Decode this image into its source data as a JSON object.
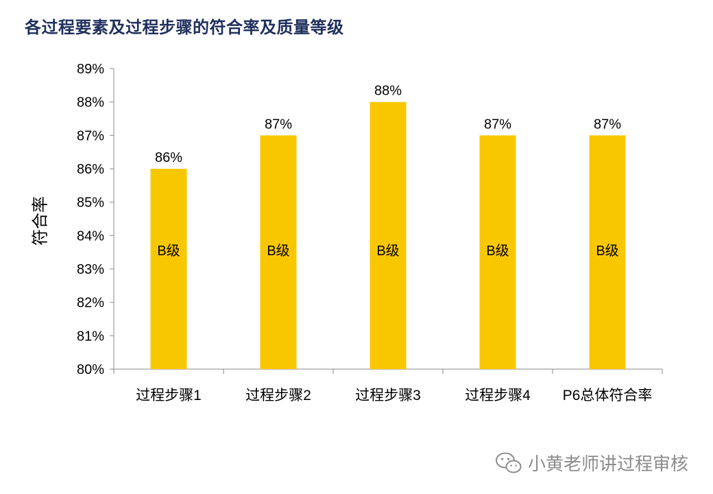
{
  "title": "各过程要素及过程步骤的符合率及质量等级",
  "watermark_text": "小黄老师讲过程审核",
  "colors": {
    "bar": "#F9C700",
    "axis": "#8a8a8a",
    "text": "#000000",
    "title": "#1f2f5c"
  },
  "chart_data": {
    "type": "bar",
    "title": "各过程要素及过程步骤的符合率及质量等级",
    "xlabel": "",
    "ylabel": "符合率",
    "categories": [
      "过程步骤1",
      "过程步骤2",
      "过程步骤3",
      "过程步骤4",
      "P6总体符合率"
    ],
    "values": [
      0.86,
      0.87,
      0.88,
      0.87,
      0.87
    ],
    "value_labels": [
      "86%",
      "87%",
      "88%",
      "87%",
      "87%"
    ],
    "grades": [
      "B级",
      "B级",
      "B级",
      "B级",
      "B级"
    ],
    "ylim": [
      0.8,
      0.89
    ],
    "y_ticks": [
      0.8,
      0.81,
      0.82,
      0.83,
      0.84,
      0.85,
      0.86,
      0.87,
      0.88,
      0.89
    ],
    "y_tick_labels": [
      "80%",
      "81%",
      "82%",
      "83%",
      "84%",
      "85%",
      "86%",
      "87%",
      "88%",
      "89%"
    ],
    "grid": false,
    "legend": "none"
  }
}
